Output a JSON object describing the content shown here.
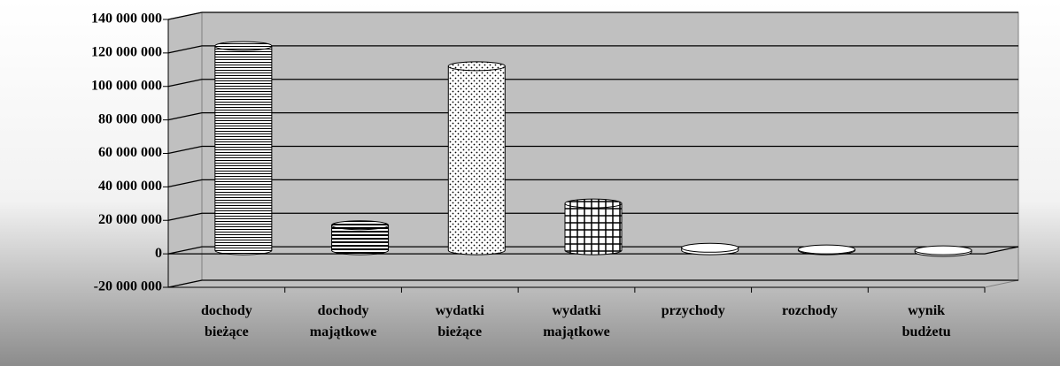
{
  "chart_data": {
    "type": "bar",
    "categories": [
      "dochody bieżące",
      "dochody majątkowe",
      "wydatki bieżące",
      "wydatki majątkowe",
      "przychody",
      "rozchody",
      "wynik budżetu"
    ],
    "values": [
      122000000,
      15000000,
      110000000,
      28000000,
      1500000,
      500000,
      -1000000
    ],
    "color": "#ffffff",
    "ylim": [
      -20000000,
      140000000
    ],
    "yticks": [
      {
        "value": -20000000,
        "label": "-20 000 000"
      },
      {
        "value": 0,
        "label": "0"
      },
      {
        "value": 20000000,
        "label": "20 000 000"
      },
      {
        "value": 40000000,
        "label": "40 000 000"
      },
      {
        "value": 60000000,
        "label": "60 000 000"
      },
      {
        "value": 80000000,
        "label": "80 000 000"
      },
      {
        "value": 100000000,
        "label": "100 000 000"
      },
      {
        "value": 120000000,
        "label": "120 000 000"
      },
      {
        "value": 140000000,
        "label": "140 000 000"
      }
    ],
    "grid": true
  }
}
